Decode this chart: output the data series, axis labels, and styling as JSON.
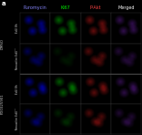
{
  "col_labels": [
    "Puromycin",
    "Ki67",
    "P-Akt",
    "Merged"
  ],
  "col_label_colors": [
    "#8888ff",
    "#00ee00",
    "#ff4444",
    "#ffffff"
  ],
  "n_rows": 4,
  "n_cols": 4,
  "background_color": "#000000",
  "panel_bg": "#000000",
  "fig_width": 1.57,
  "fig_height": 1.49,
  "dpi": 100,
  "col_label_fontsize": 3.5,
  "group_labels": [
    "DMSO",
    "PD0325901"
  ],
  "row_sub_labels": [
    "EdU 8h",
    "Tamoxifen EdU’’’",
    "EdU 8h",
    "Tamoxifen EdU’’’"
  ],
  "left_label_color": "#cccccc",
  "sep_color": "#555555",
  "border_color": "#333333"
}
